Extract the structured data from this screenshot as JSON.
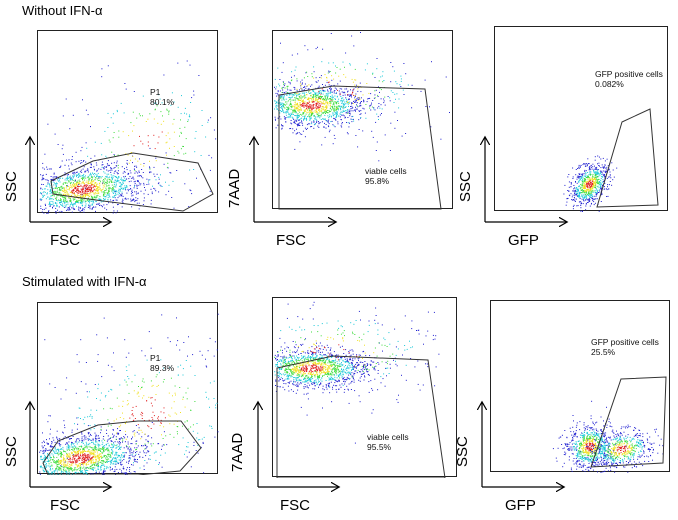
{
  "rows": [
    {
      "title": "Without IFN-α",
      "panels": [
        {
          "type": "scatter",
          "xlabel": "FSC",
          "ylabel": "SSC",
          "gate_label": "P1",
          "gate_value": "80.1%"
        },
        {
          "type": "scatter",
          "xlabel": "FSC",
          "ylabel": "7AAD",
          "gate_label": "viable cells",
          "gate_value": "95.8%"
        },
        {
          "type": "scatter",
          "xlabel": "GFP",
          "ylabel": "SSC",
          "gate_label": "GFP positive cells",
          "gate_value": "0.082%"
        }
      ]
    },
    {
      "title": "Stimulated with IFN-α",
      "panels": [
        {
          "type": "scatter",
          "xlabel": "FSC",
          "ylabel": "SSC",
          "gate_label": "P1",
          "gate_value": "89.3%"
        },
        {
          "type": "scatter",
          "xlabel": "FSC",
          "ylabel": "7AAD",
          "gate_label": "viable cells",
          "gate_value": "95.5%"
        },
        {
          "type": "scatter",
          "xlabel": "GFP",
          "ylabel": "SSC",
          "gate_label": "GFP positive cells",
          "gate_value": "25.5%"
        }
      ]
    }
  ],
  "colors": {
    "low_density": "#1f1fd0",
    "mid": "#19c8d8",
    "mid2": "#3ddc3d",
    "high": "#f0e020",
    "peak": "#e02020",
    "gate": "#333333"
  }
}
